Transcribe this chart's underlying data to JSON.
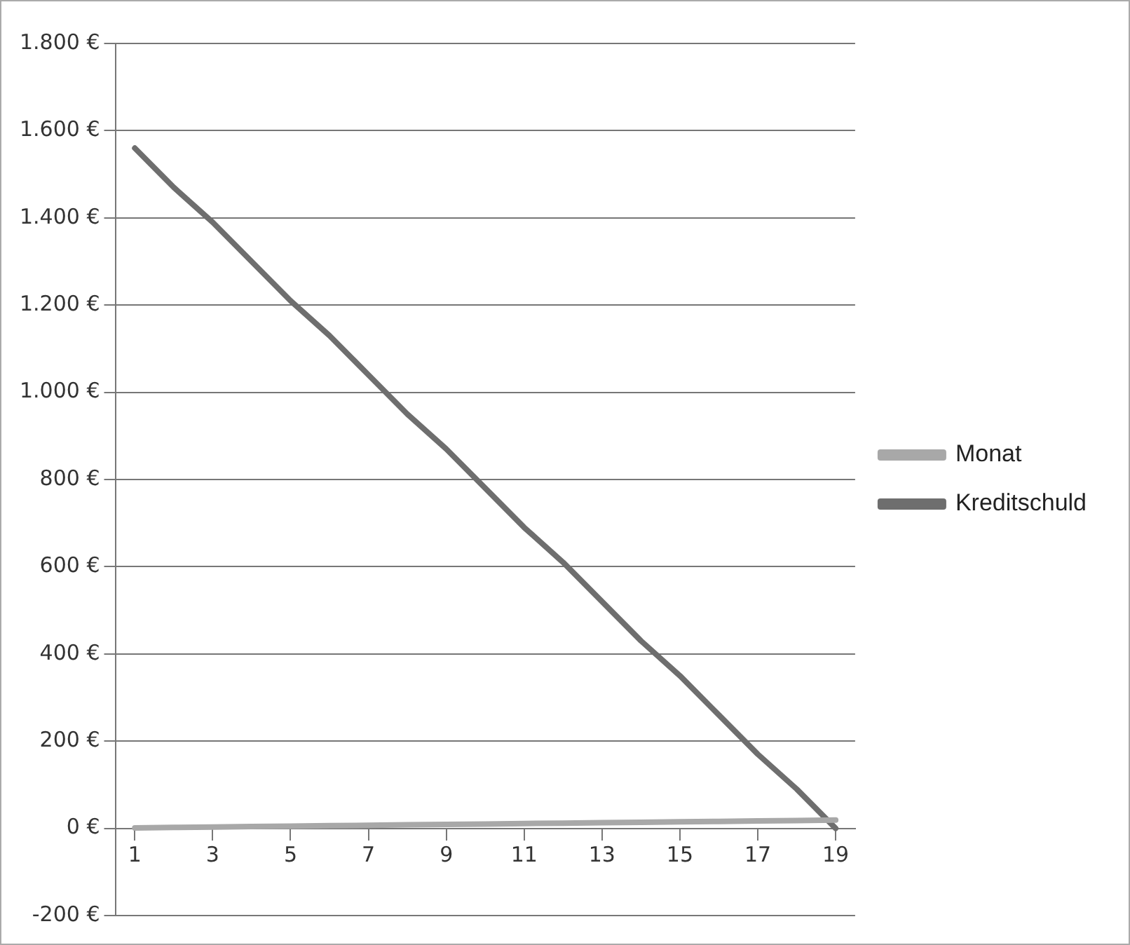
{
  "chart_data": {
    "type": "line",
    "x": [
      1,
      2,
      3,
      4,
      5,
      6,
      7,
      8,
      9,
      10,
      11,
      12,
      13,
      14,
      15,
      16,
      17,
      18,
      19
    ],
    "series": [
      {
        "name": "Monat",
        "color": "#a8a8a8",
        "values": [
          1,
          2,
          3,
          4,
          5,
          6,
          7,
          8,
          9,
          10,
          11,
          12,
          13,
          14,
          15,
          16,
          17,
          18,
          19
        ]
      },
      {
        "name": "Kreditschuld",
        "color": "#6e6e6e",
        "values": [
          1560,
          1470,
          1390,
          1300,
          1210,
          1130,
          1040,
          950,
          870,
          780,
          690,
          610,
          520,
          430,
          350,
          260,
          170,
          90,
          0
        ]
      }
    ],
    "xlim": [
      0.5,
      19.5
    ],
    "xticks": [
      1,
      3,
      5,
      7,
      9,
      11,
      13,
      15,
      17,
      19
    ],
    "ylim": [
      -200,
      1800
    ],
    "yticks": [
      {
        "value": -200,
        "label": "-200 €"
      },
      {
        "value": 0,
        "label": "0 €"
      },
      {
        "value": 200,
        "label": "200 €"
      },
      {
        "value": 400,
        "label": "400 €"
      },
      {
        "value": 600,
        "label": "600 €"
      },
      {
        "value": 800,
        "label": "800 €"
      },
      {
        "value": 1000,
        "label": "1.000 €"
      },
      {
        "value": 1200,
        "label": "1.200 €"
      },
      {
        "value": 1400,
        "label": "1.400 €"
      },
      {
        "value": 1600,
        "label": "1.600 €"
      },
      {
        "value": 1800,
        "label": "1.800 €"
      }
    ],
    "grid": "y",
    "legend": "right",
    "marker": "none",
    "line_style": "solid"
  }
}
